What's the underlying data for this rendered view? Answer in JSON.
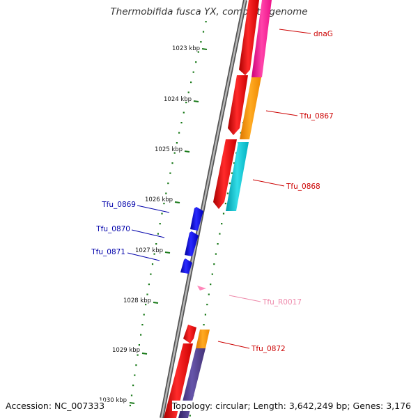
{
  "title": "Thermobifida fusca YX, complete genome",
  "footer": {
    "accession": "Accession: NC_007333",
    "topology": "Topology: circular; Length: 3,642,249 bp; Genes: 3,176"
  },
  "colors": {
    "backbone": "#7a7a7a",
    "cds_forward": "#ee0000",
    "cds_reverse": "#0000dd",
    "rna": "#ff88bb",
    "gc_skew_dots": "#1a7a1a",
    "cog_pink": "#ff2299",
    "cog_orange": "#ff9900",
    "cog_cyan": "#00bbcc",
    "cog_purple": "#553388",
    "label_forward": "#cc0000",
    "label_reverse": "#0000aa",
    "label_rna": "#ee88aa"
  },
  "ruler": [
    "1023 kbp",
    "1024 kbp",
    "1025 kbp",
    "1026 kbp",
    "1027 kbp",
    "1028 kbp",
    "1029 kbp",
    "1030 kbp"
  ],
  "genes": [
    {
      "label": "dnaG",
      "strand": "forward"
    },
    {
      "label": "Tfu_0867",
      "strand": "forward"
    },
    {
      "label": "Tfu_0868",
      "strand": "forward"
    },
    {
      "label": "Tfu_0869",
      "strand": "reverse"
    },
    {
      "label": "Tfu_0870",
      "strand": "reverse"
    },
    {
      "label": "Tfu_0871",
      "strand": "reverse"
    },
    {
      "label": "Tfu_R0017",
      "strand": "rna"
    },
    {
      "label": "Tfu_0872",
      "strand": "forward"
    }
  ]
}
